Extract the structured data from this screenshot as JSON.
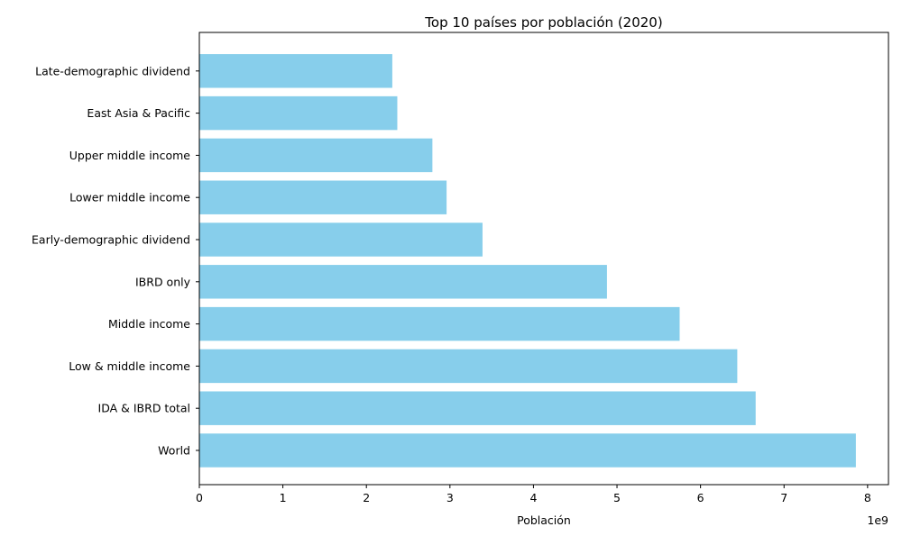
{
  "chart_data": {
    "type": "bar",
    "orientation": "horizontal",
    "title": "Top 10 países por población (2020)",
    "xlabel": "Población",
    "ylabel": "",
    "x_offset_text": "1e9",
    "xlim": [
      0,
      8.25
    ],
    "xticks": [
      "0",
      "1",
      "2",
      "3",
      "4",
      "5",
      "6",
      "7",
      "8"
    ],
    "categories": [
      "World",
      "IDA & IBRD total",
      "Low & middle income",
      "Middle income",
      "IBRD only",
      "Early-demographic dividend",
      "Lower middle income",
      "Upper middle income",
      "East Asia & Pacific",
      "Late-demographic dividend"
    ],
    "values": [
      7.86,
      6.66,
      6.44,
      5.75,
      4.88,
      3.39,
      2.96,
      2.79,
      2.37,
      2.31
    ],
    "bar_color": "#87ceeb",
    "grid": false,
    "legend": "none"
  }
}
